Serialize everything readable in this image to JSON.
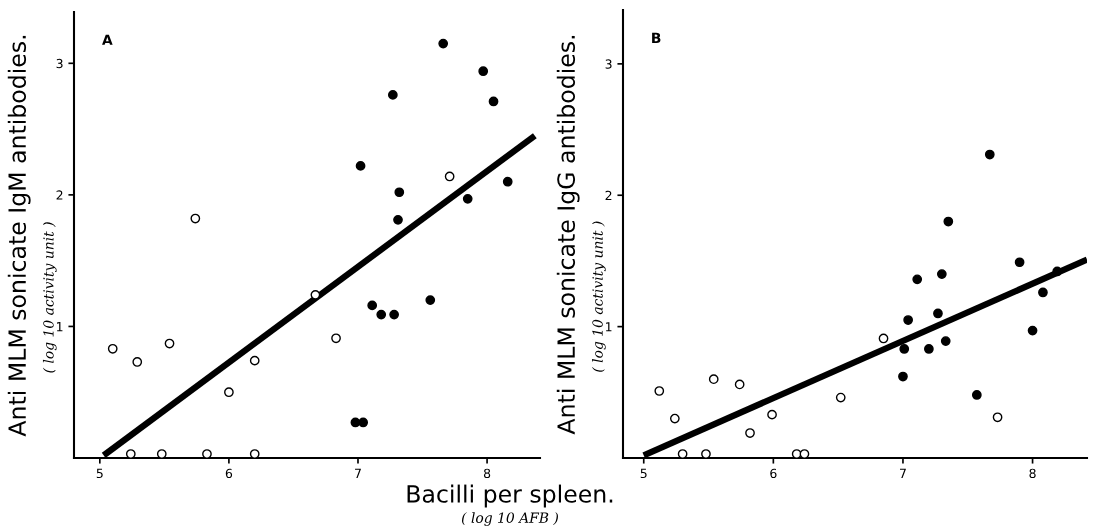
{
  "chart_data": [
    {
      "type": "scatter",
      "xlabel": "Bacilli per spleen.",
      "ylabel": "Anti MLM sonicate IgM antibodies.",
      "annotations": [
        "A",
        "( log 10 activity unit )",
        "( log 10 AFB )"
      ],
      "xlim": [
        4.8,
        8.41
      ],
      "ylim": [
        0,
        3.39
      ],
      "xticks": [
        5,
        6,
        7,
        8
      ],
      "yticks": [
        1,
        2,
        3
      ],
      "grid": false,
      "legend": false,
      "series": [
        {
          "marker": "circle",
          "color": "#ffffff",
          "x": [
            5.1,
            5.29,
            5.54,
            5.74,
            6.0,
            6.2,
            6.67,
            6.83,
            7.71,
            5.24,
            5.48,
            5.83,
            6.2
          ],
          "values": [
            0.83,
            0.73,
            0.87,
            1.82,
            0.5,
            0.74,
            1.24,
            0.91,
            2.14,
            0.03,
            0.03,
            0.03,
            0.03
          ]
        },
        {
          "marker": "circle",
          "color": "#000000",
          "x": [
            7.66,
            7.97,
            7.27,
            8.05,
            7.02,
            7.32,
            7.85,
            8.16,
            7.31,
            7.11,
            7.18,
            7.28,
            7.56,
            6.98,
            7.04
          ],
          "values": [
            3.15,
            2.94,
            2.76,
            2.71,
            2.22,
            2.02,
            1.97,
            2.1,
            1.81,
            1.16,
            1.09,
            1.09,
            1.2,
            0.27,
            0.27
          ]
        },
        {
          "type": "line",
          "color": "#000000",
          "x": [
            5.03,
            8.37
          ],
          "values": [
            0.02,
            2.45
          ]
        }
      ]
    },
    {
      "type": "scatter",
      "ylabel": "Anti MLM sonicate IgG antibodies.",
      "annotations": [
        "B",
        "( log 10 activity unit )"
      ],
      "xlim": [
        4.84,
        8.42
      ],
      "ylim": [
        0,
        3.41
      ],
      "xticks": [
        5,
        6,
        7,
        8
      ],
      "yticks": [
        1,
        2,
        3
      ],
      "grid": false,
      "legend": false,
      "series": [
        {
          "marker": "circle",
          "color": "#ffffff",
          "x": [
            5.12,
            5.24,
            5.54,
            5.74,
            5.82,
            5.99,
            6.52,
            6.85,
            7.73,
            5.3,
            5.48,
            6.18,
            6.24
          ],
          "values": [
            0.51,
            0.3,
            0.6,
            0.56,
            0.19,
            0.33,
            0.46,
            0.91,
            0.31,
            0.03,
            0.03,
            0.03,
            0.03
          ]
        },
        {
          "marker": "circle",
          "color": "#000000",
          "x": [
            7.67,
            7.35,
            7.9,
            7.3,
            7.11,
            8.19,
            8.08,
            7.27,
            7.04,
            8.0,
            7.33,
            7.01,
            7.2,
            7.0,
            7.57
          ],
          "values": [
            2.31,
            1.8,
            1.49,
            1.4,
            1.36,
            1.42,
            1.26,
            1.1,
            1.05,
            0.97,
            0.89,
            0.83,
            0.83,
            0.62,
            0.48
          ]
        },
        {
          "type": "line",
          "color": "#000000",
          "x": [
            5.0,
            8.42
          ],
          "values": [
            0.02,
            1.51
          ]
        }
      ]
    }
  ]
}
